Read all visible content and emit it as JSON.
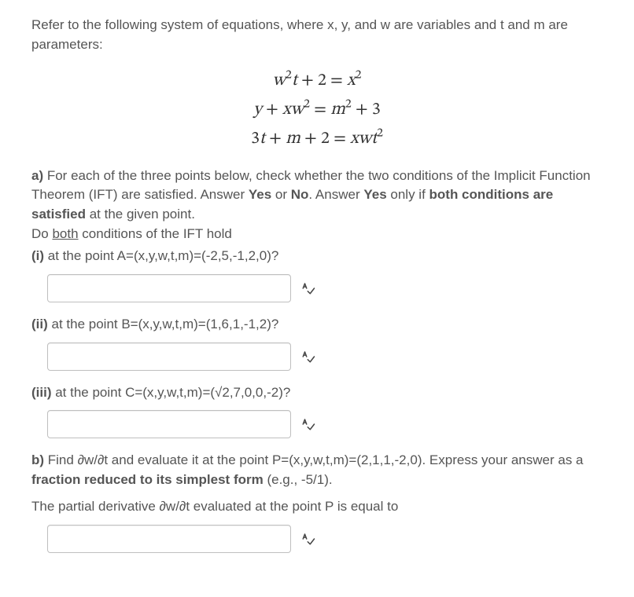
{
  "intro": "Refer to the following system of equations, where x, y, and w are variables and t and m are parameters:",
  "equations": {
    "lines_html": [
      "<span class=\"eq-line\"><i>w</i><sup class=\"sq\">2</sup><i>t</i> + 2 = <i>x</i><sup class=\"sq\">2</sup></span>",
      "<span class=\"eq-line\"><i>y</i> + <i>xw</i><sup class=\"sq\">2</sup> = <i>m</i><sup class=\"sq\">2</sup> + 3</span>",
      "<span class=\"eq-line\">3<i>t</i> + <i>m</i> + 2 = <i>xwt</i><sup class=\"sq\">2</sup></span>"
    ]
  },
  "part_a": {
    "label": "a)",
    "body_before_bold": " For each of the three points below, check whether the two conditions of the Implicit Function Theorem (IFT) are satisfied. Answer ",
    "yes1": "Yes",
    "mid1": " or ",
    "no1": "No",
    "mid2": ". Answer ",
    "yes2": "Yes",
    "mid3": " only if ",
    "bold_tail": "both conditions are satisfied",
    "after_bold": " at the given point.",
    "do_line_pre": "Do ",
    "do_line_underline": "both",
    "do_line_post": " conditions of the IFT hold",
    "i": {
      "label": "(i)",
      "text": " at the point A=(x,y,w,t,m)=(-2,5,-1,2,0)?"
    },
    "ii": {
      "label": "(ii)",
      "text": " at the point B=(x,y,w,t,m)=(1,6,1,-1,2)?"
    },
    "iii": {
      "label": "(iii)",
      "text": " at the point C=(x,y,w,t,m)=(√2,7,0,0,-2)?"
    }
  },
  "part_b": {
    "label": "b)",
    "body": " Find ∂w/∂t and evaluate it at the point P=(x,y,w,t,m)=(2,1,1,-2,0). Express your answer as a ",
    "bold": "fraction reduced to its simplest form",
    "after": " (e.g., -5/1).",
    "line2": "The partial derivative ∂w/∂t evaluated at the point P is equal to"
  },
  "inputs": {
    "i_value": "",
    "ii_value": "",
    "iii_value": "",
    "b_value": ""
  }
}
